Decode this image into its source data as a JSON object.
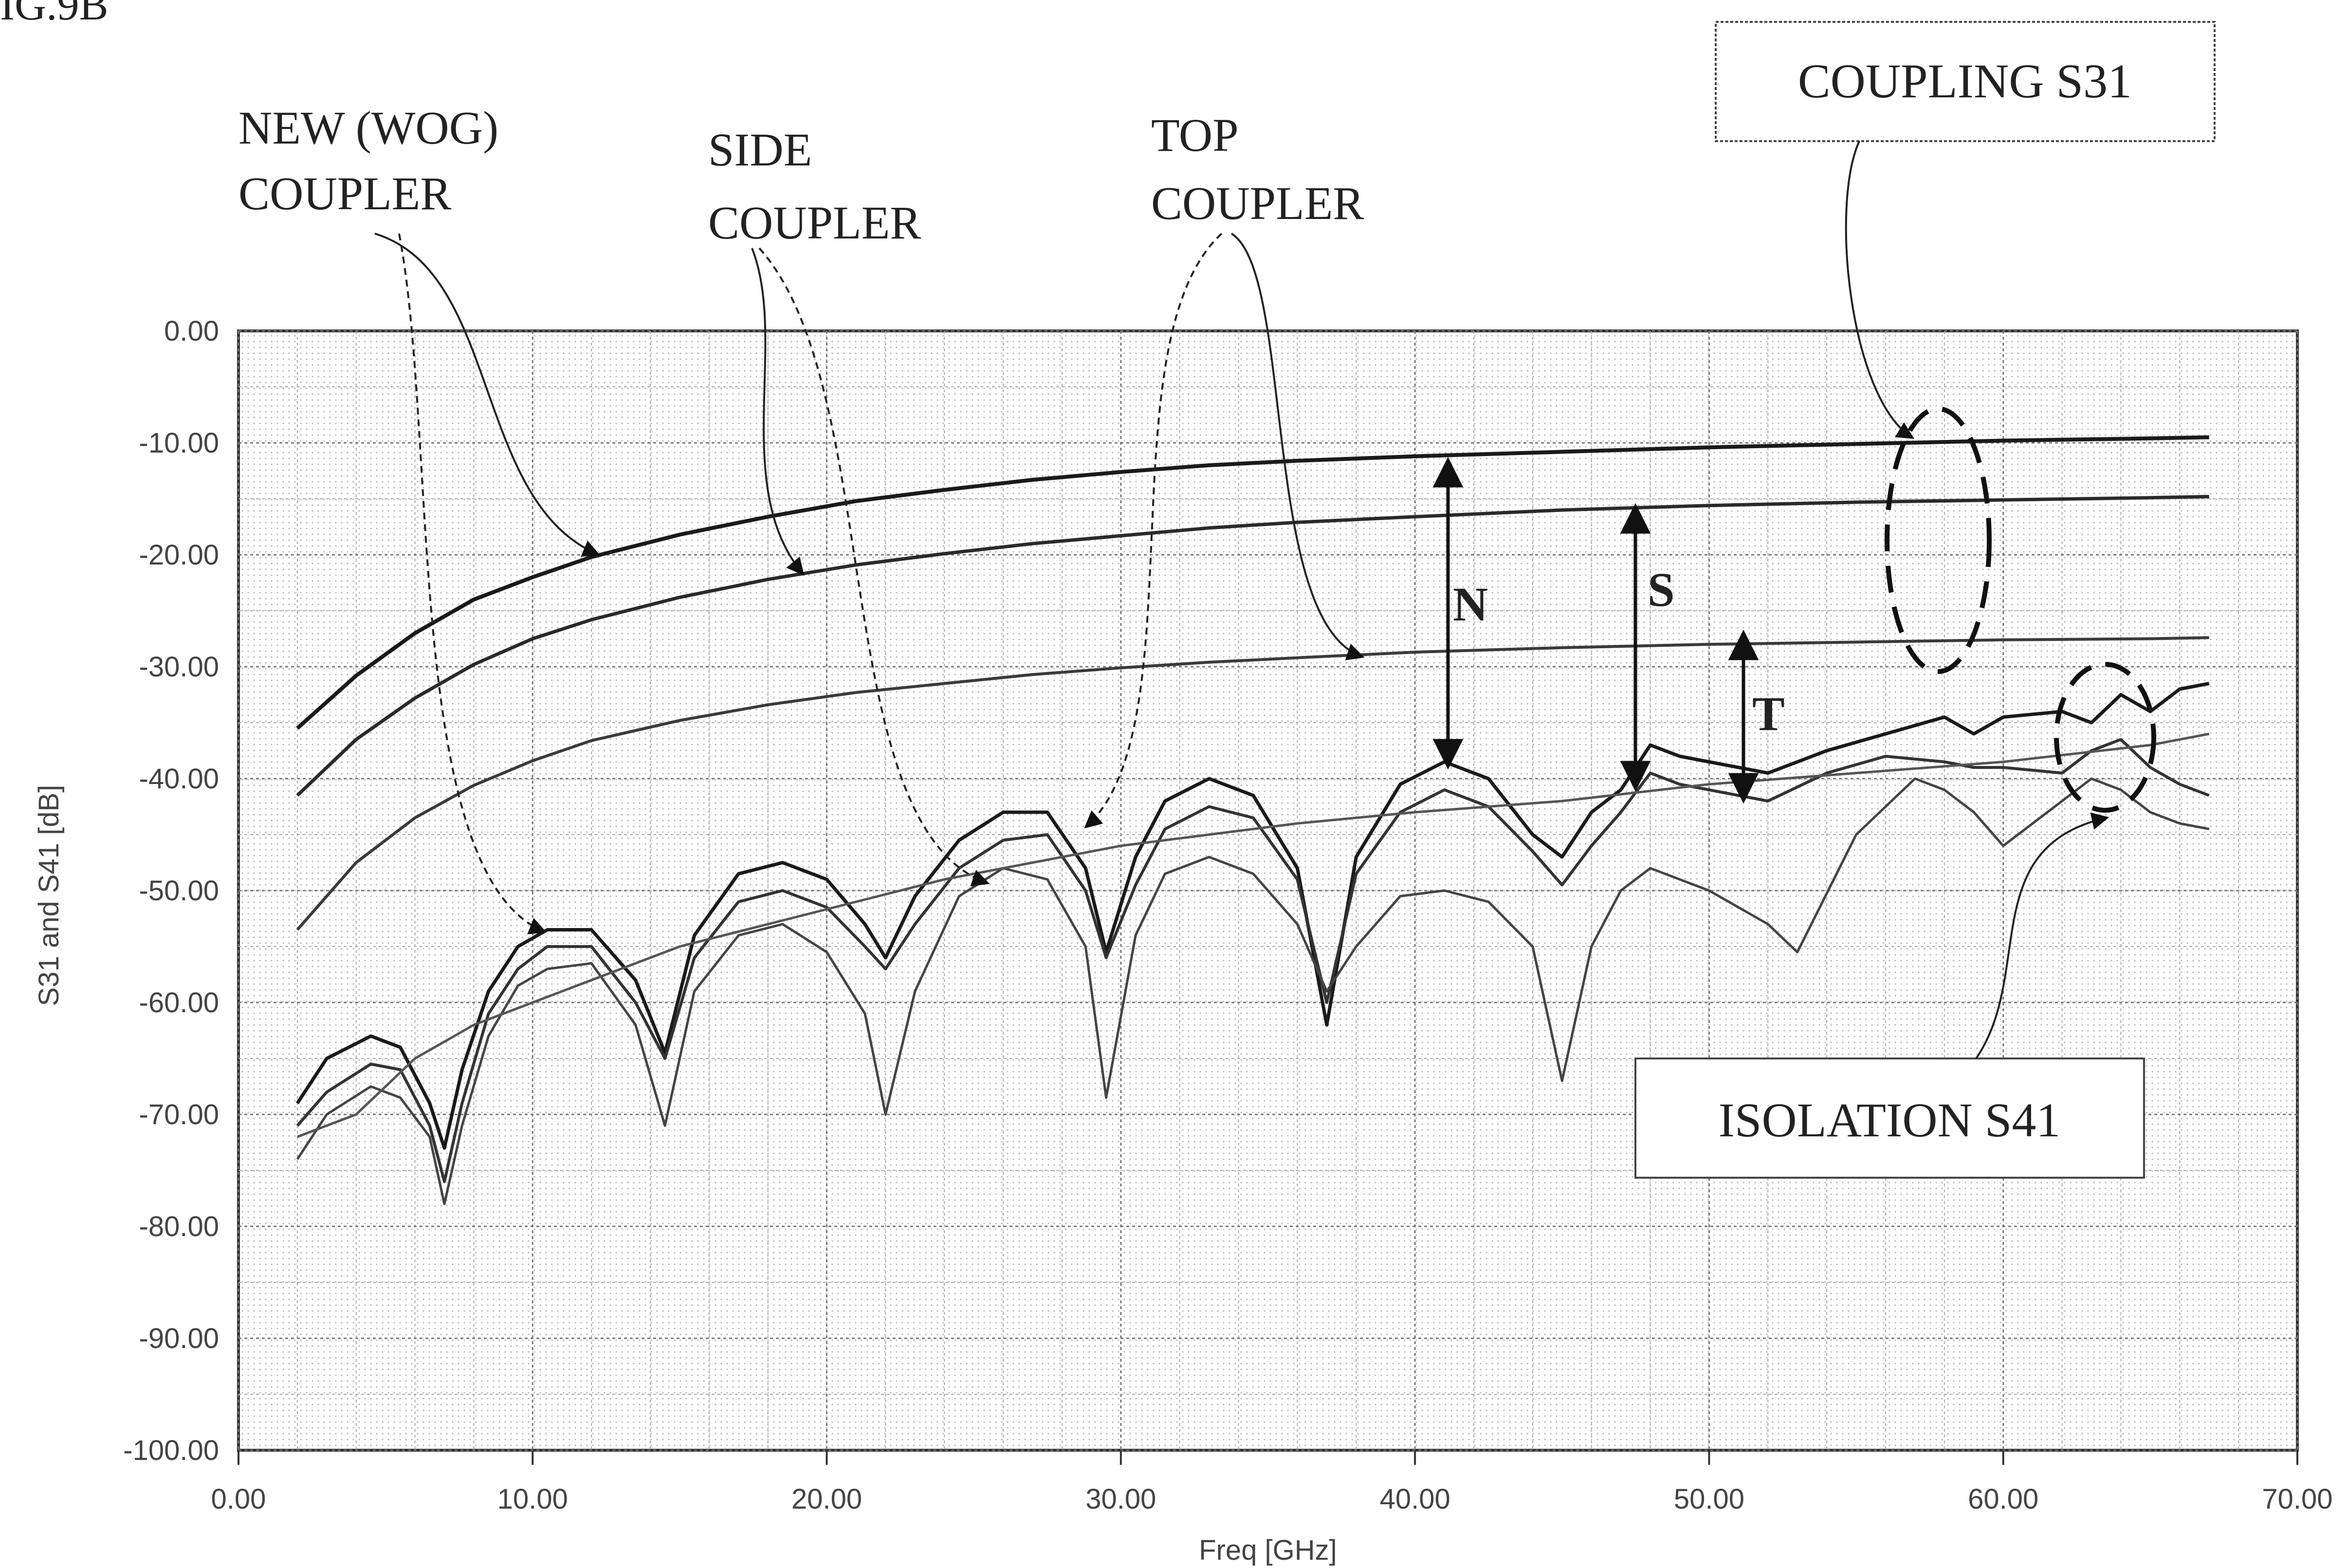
{
  "figure_label": "IG.9B",
  "chart_data": {
    "type": "line",
    "xlabel": "Freq [GHz]",
    "ylabel": "S31 and S41 [dB]",
    "xlim": [
      0,
      70
    ],
    "ylim": [
      -100,
      0
    ],
    "x_ticks": [
      "0.00",
      "10.00",
      "20.00",
      "30.00",
      "40.00",
      "50.00",
      "60.00",
      "70.00"
    ],
    "y_ticks": [
      "0.00",
      "-10.00",
      "-20.00",
      "-30.00",
      "-40.00",
      "-50.00",
      "-60.00",
      "-70.00",
      "-80.00",
      "-90.00",
      "-100.00"
    ],
    "grid": true,
    "series": [
      {
        "name": "NEW (WOG) COUPLER",
        "group": "COUPLING S31",
        "x": [
          2,
          4,
          6,
          8,
          10,
          12,
          15,
          18,
          21,
          24,
          27,
          30,
          33,
          36,
          40,
          45,
          50,
          55,
          60,
          65,
          67
        ],
        "y": [
          -35.5,
          -30.8,
          -27,
          -24,
          -22,
          -20.2,
          -18.2,
          -16.6,
          -15.2,
          -14.2,
          -13.3,
          -12.6,
          -12,
          -11.6,
          -11.2,
          -10.8,
          -10.4,
          -10.1,
          -9.8,
          -9.6,
          -9.5
        ]
      },
      {
        "name": "SIDE COUPLER",
        "group": "COUPLING S31",
        "x": [
          2,
          4,
          6,
          8,
          10,
          12,
          15,
          18,
          21,
          24,
          27,
          30,
          33,
          36,
          40,
          45,
          50,
          55,
          60,
          65,
          67
        ],
        "y": [
          -41.5,
          -36.5,
          -32.8,
          -29.8,
          -27.5,
          -25.8,
          -23.8,
          -22.2,
          -20.9,
          -19.9,
          -19,
          -18.3,
          -17.6,
          -17.1,
          -16.6,
          -16,
          -15.6,
          -15.3,
          -15.1,
          -14.9,
          -14.8
        ]
      },
      {
        "name": "TOP COUPLER",
        "group": "COUPLING S31",
        "x": [
          2,
          4,
          6,
          8,
          10,
          12,
          15,
          18,
          21,
          24,
          27,
          30,
          33,
          36,
          40,
          45,
          50,
          55,
          60,
          65,
          67
        ],
        "y": [
          -53.5,
          -47.5,
          -43.5,
          -40.6,
          -38.4,
          -36.6,
          -34.8,
          -33.4,
          -32.3,
          -31.5,
          -30.7,
          -30.1,
          -29.6,
          -29.2,
          -28.7,
          -28.3,
          -28,
          -27.8,
          -27.6,
          -27.5,
          -27.4
        ]
      },
      {
        "name": "NEW (WOG) COUPLER",
        "group": "ISOLATION S41",
        "x": [
          2,
          3,
          4.5,
          5.5,
          6.5,
          7,
          7.6,
          8.5,
          9.5,
          10.5,
          12,
          13.5,
          14.5,
          15.5,
          17,
          18.5,
          20,
          21.3,
          22,
          23,
          24.5,
          26,
          27.5,
          28.8,
          29.5,
          30.5,
          31.5,
          33,
          34.5,
          36,
          37,
          38,
          39.5,
          41,
          42.5,
          44,
          45,
          46,
          47,
          48,
          49,
          50,
          52,
          54,
          56,
          58,
          59,
          60,
          62,
          63,
          64,
          65,
          66,
          67
        ],
        "y": [
          -69,
          -65,
          -63,
          -64,
          -69,
          -73,
          -66,
          -59,
          -55,
          -53.5,
          -53.5,
          -58,
          -64.5,
          -54,
          -48.5,
          -47.5,
          -49,
          -53,
          -56,
          -50.5,
          -45.5,
          -43,
          -43,
          -48,
          -55.5,
          -47,
          -42,
          -40,
          -41.5,
          -48,
          -62,
          -47,
          -40.5,
          -38.5,
          -40,
          -45,
          -47,
          -43,
          -41,
          -37,
          -38,
          -38.5,
          -39.5,
          -37.5,
          -36,
          -34.5,
          -36,
          -34.5,
          -34,
          -35,
          -32.5,
          -34,
          -32,
          -31.5
        ]
      },
      {
        "name": "SIDE COUPLER",
        "group": "ISOLATION S41",
        "x": [
          2,
          3,
          4.5,
          5.5,
          6.5,
          7,
          7.6,
          8.5,
          9.5,
          10.5,
          12,
          13.5,
          14.5,
          15.5,
          17,
          18.5,
          20,
          21.3,
          22,
          23,
          24.5,
          26,
          27.5,
          28.8,
          29.5,
          30.5,
          31.5,
          33,
          34.5,
          36,
          37,
          38,
          39.5,
          41,
          42.5,
          44,
          45,
          46,
          47,
          48,
          49,
          50,
          52,
          54,
          56,
          58,
          59,
          60,
          62,
          63,
          64,
          65,
          66,
          67
        ],
        "y": [
          -71,
          -68,
          -65.5,
          -66,
          -71,
          -76,
          -69,
          -61,
          -57,
          -55,
          -55,
          -60,
          -65,
          -56,
          -51,
          -50,
          -51.5,
          -55,
          -57,
          -53,
          -48,
          -45.5,
          -45,
          -50,
          -56,
          -49.5,
          -44.5,
          -42.5,
          -43.5,
          -49,
          -60,
          -48.5,
          -43,
          -41,
          -42.5,
          -46.5,
          -49.5,
          -46,
          -43,
          -39.5,
          -40.5,
          -41,
          -42,
          -39.5,
          -38,
          -38.5,
          -39,
          -39,
          -39.5,
          -37.5,
          -36.5,
          -39,
          -40.5,
          -41.5
        ]
      },
      {
        "name": "TOP COUPLER",
        "group": "ISOLATION S41",
        "x": [
          2,
          3,
          4.5,
          5.5,
          6.5,
          7,
          7.6,
          8.5,
          9.5,
          10.5,
          12,
          13.5,
          14.5,
          15.5,
          17,
          18.5,
          20,
          21.3,
          22,
          23,
          24.5,
          26,
          27.5,
          28.8,
          29.5,
          30.5,
          31.5,
          33,
          34.5,
          36,
          37,
          38,
          39.5,
          41,
          42.5,
          44,
          45,
          46,
          47,
          48,
          50,
          52,
          53,
          55,
          56,
          57,
          58,
          59,
          60,
          62,
          63,
          64,
          65,
          66,
          67
        ],
        "y": [
          -74,
          -70,
          -67.5,
          -68.5,
          -72,
          -78,
          -71,
          -63,
          -58.5,
          -57,
          -56.5,
          -62,
          -71,
          -59,
          -54,
          -53,
          -55.5,
          -61,
          -70,
          -59,
          -50.5,
          -48,
          -49,
          -55,
          -68.5,
          -54,
          -48.5,
          -47,
          -48.5,
          -53,
          -59,
          -55,
          -50.5,
          -50,
          -51,
          -55,
          -67,
          -55,
          -50,
          -48,
          -50,
          -53,
          -55.5,
          -45,
          -42.5,
          -40,
          -41,
          -43,
          -46,
          -42,
          -40,
          -41,
          -43,
          -44,
          -44.5
        ]
      },
      {
        "name": "NEW (WOG) COUPLER",
        "group": "ISOLATION S41",
        "role": "upper trace",
        "x": [
          2,
          4,
          6,
          8,
          10,
          12,
          15,
          18,
          21,
          24,
          27,
          30,
          33,
          36,
          40,
          45,
          50,
          55,
          60,
          65,
          67
        ],
        "y": [
          -72,
          -70,
          -65,
          -62,
          -60,
          -58,
          -55,
          -53,
          -51,
          -49,
          -47.5,
          -46,
          -45,
          -44,
          -43,
          -42,
          -40.5,
          -39.5,
          -38.5,
          -37,
          -36
        ]
      }
    ],
    "annotations": {
      "new_coupler": [
        "NEW (WOG)",
        "COUPLER"
      ],
      "side_coupler": [
        "SIDE",
        "COUPLER"
      ],
      "top_coupler": [
        "TOP",
        "COUPLER"
      ],
      "coupling_box": "COUPLING S31",
      "isolation_box": "ISOLATION S41",
      "markers": [
        "N",
        "S",
        "T"
      ]
    }
  }
}
